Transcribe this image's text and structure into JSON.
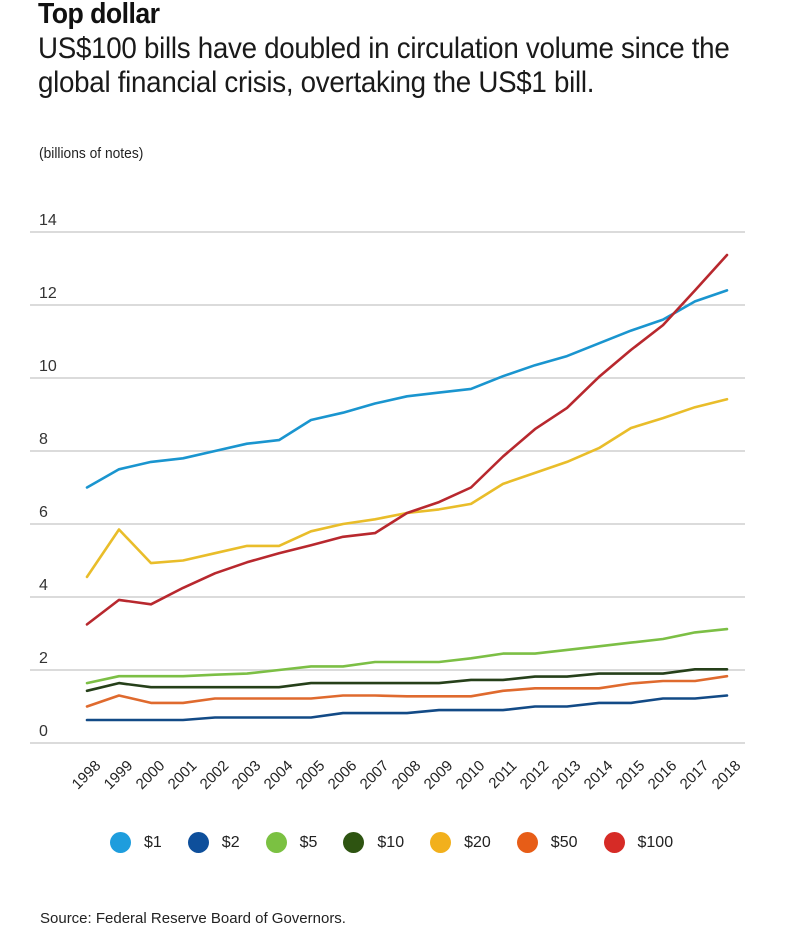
{
  "title": "Top dollar",
  "subtitle": "US$100 bills have doubled in circulation volume since the global financial crisis, overtaking the US$1 bill.",
  "units": "(billions of notes)",
  "source": "Source: Federal Reserve Board of Governors.",
  "chart_data": {
    "type": "line",
    "title": "Top dollar",
    "subtitle": "US$100 bills have doubled in circulation volume since the global financial crisis, overtaking the US$1 bill.",
    "xlabel": "",
    "ylabel": "(billions of notes)",
    "ylim": [
      0,
      14
    ],
    "yticks": [
      0,
      2,
      4,
      6,
      8,
      10,
      12,
      14
    ],
    "grid": true,
    "legend_position": "bottom",
    "x": [
      "1998",
      "1999",
      "2000",
      "2001",
      "2002",
      "2003",
      "2004",
      "2005",
      "2006",
      "2007",
      "2008",
      "2009",
      "2010",
      "2011",
      "2012",
      "2013",
      "2014",
      "2015",
      "2016",
      "2017",
      "2018"
    ],
    "series": [
      {
        "name": "$1",
        "color": "#1a95cf",
        "legend_color": "#1e9ddd",
        "values": [
          7.0,
          7.5,
          7.7,
          7.8,
          8.0,
          8.2,
          8.3,
          8.85,
          9.05,
          9.3,
          9.5,
          9.6,
          9.7,
          10.05,
          10.35,
          10.6,
          10.95,
          11.3,
          11.6,
          12.1,
          12.4
        ]
      },
      {
        "name": "$2",
        "color": "#124a86",
        "legend_color": "#0e4f9b",
        "values": [
          0.63,
          0.63,
          0.63,
          0.63,
          0.7,
          0.7,
          0.7,
          0.7,
          0.82,
          0.82,
          0.82,
          0.9,
          0.9,
          0.9,
          1.0,
          1.0,
          1.1,
          1.1,
          1.22,
          1.22,
          1.3
        ]
      },
      {
        "name": "$5",
        "color": "#7cbf45",
        "legend_color": "#7bc142",
        "values": [
          1.64,
          1.83,
          1.83,
          1.83,
          1.87,
          1.9,
          2.0,
          2.1,
          2.1,
          2.22,
          2.22,
          2.22,
          2.32,
          2.45,
          2.45,
          2.55,
          2.65,
          2.75,
          2.85,
          3.03,
          3.12
        ]
      },
      {
        "name": "$10",
        "color": "#26401a",
        "legend_color": "#2e5411",
        "values": [
          1.43,
          1.64,
          1.53,
          1.53,
          1.53,
          1.53,
          1.53,
          1.64,
          1.64,
          1.64,
          1.64,
          1.64,
          1.73,
          1.73,
          1.82,
          1.82,
          1.9,
          1.9,
          1.9,
          2.02,
          2.02
        ]
      },
      {
        "name": "$20",
        "color": "#e9bd2a",
        "legend_color": "#f2b01c",
        "values": [
          4.55,
          5.85,
          4.93,
          5.0,
          5.2,
          5.4,
          5.4,
          5.8,
          6.0,
          6.13,
          6.3,
          6.4,
          6.55,
          7.1,
          7.4,
          7.7,
          8.08,
          8.63,
          8.9,
          9.2,
          9.42
        ]
      },
      {
        "name": "$50",
        "color": "#df6a2e",
        "legend_color": "#e75d17",
        "values": [
          1.0,
          1.3,
          1.1,
          1.1,
          1.22,
          1.22,
          1.22,
          1.22,
          1.3,
          1.3,
          1.28,
          1.28,
          1.28,
          1.43,
          1.5,
          1.5,
          1.5,
          1.63,
          1.7,
          1.7,
          1.83
        ]
      },
      {
        "name": "$100",
        "color": "#b8282e",
        "legend_color": "#d62b26",
        "values": [
          3.25,
          3.92,
          3.8,
          4.25,
          4.65,
          4.95,
          5.2,
          5.42,
          5.65,
          5.75,
          6.3,
          6.6,
          7.0,
          7.85,
          8.6,
          9.18,
          10.03,
          10.77,
          11.45,
          12.4,
          13.37
        ]
      }
    ]
  }
}
